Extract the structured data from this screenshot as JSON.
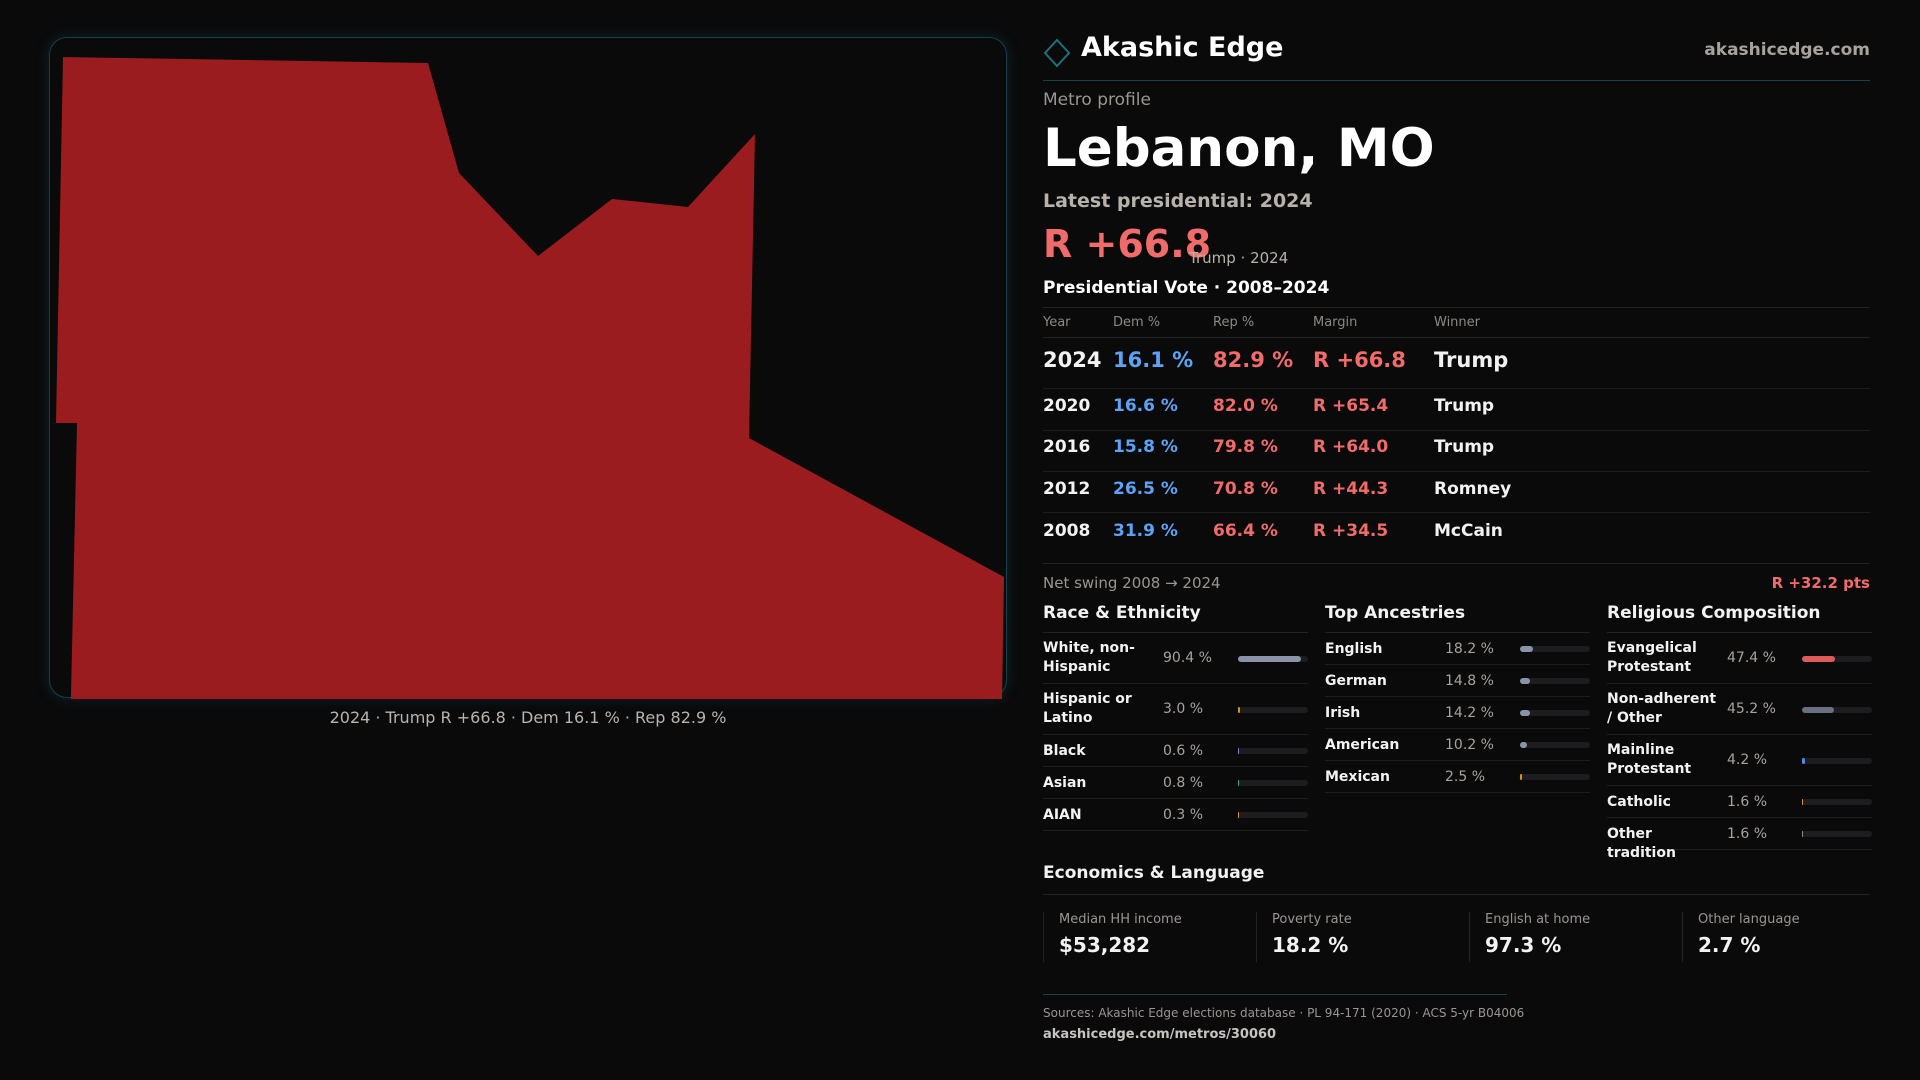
{
  "brand": {
    "name": "Akashic Edge",
    "site": "akashicedge.com",
    "accent": "#1f6f7a"
  },
  "profile": {
    "kicker": "Metro profile",
    "title": "Lebanon, MO",
    "latest": "Latest presidential: 2024",
    "margin": "R +66.8",
    "margin_sub": "Trump · 2024",
    "margin_color": "#f26b6b"
  },
  "map": {
    "fill": "#9a1c1f",
    "caption": "2024 · Trump R +66.8 · Dem 16.1 % · Rep 82.9 %"
  },
  "vote": {
    "title": "Presidential Vote · 2008–2024",
    "headers": [
      "Year",
      "Dem %",
      "Rep %",
      "Margin",
      "Winner"
    ],
    "rows": [
      {
        "year": "2024",
        "dem": "16.1 %",
        "rep": "82.9 %",
        "margin": "R +66.8",
        "winner": "Trump"
      },
      {
        "year": "2020",
        "dem": "16.6 %",
        "rep": "82.0 %",
        "margin": "R +65.4",
        "winner": "Trump"
      },
      {
        "year": "2016",
        "dem": "15.8 %",
        "rep": "79.8 %",
        "margin": "R +64.0",
        "winner": "Trump"
      },
      {
        "year": "2012",
        "dem": "26.5 %",
        "rep": "70.8 %",
        "margin": "R +44.3",
        "winner": "Romney"
      },
      {
        "year": "2008",
        "dem": "31.9 %",
        "rep": "66.4 %",
        "margin": "R +34.5",
        "winner": "McCain"
      }
    ],
    "swing_label": "Net swing 2008 → 2024",
    "swing_value": "R +32.2 pts"
  },
  "race": {
    "title": "Race & Ethnicity",
    "items": [
      {
        "label": "White, non-Hispanic",
        "value": "90.4 %",
        "pct": 90.4,
        "color": "#8a94a8"
      },
      {
        "label": "Hispanic or Latino",
        "value": "3.0 %",
        "pct": 3.0,
        "color": "#d9901a"
      },
      {
        "label": "Black",
        "value": "0.6 %",
        "pct": 0.6,
        "color": "#8a7ad0"
      },
      {
        "label": "Asian",
        "value": "0.8 %",
        "pct": 0.8,
        "color": "#2aa88a"
      },
      {
        "label": "AIAN",
        "value": "0.3 %",
        "pct": 0.3,
        "color": "#d9901a"
      }
    ]
  },
  "ancestry": {
    "title": "Top Ancestries",
    "items": [
      {
        "label": "English",
        "value": "18.2 %",
        "pct": 18.2,
        "color": "#8a94a8"
      },
      {
        "label": "German",
        "value": "14.8 %",
        "pct": 14.8,
        "color": "#8a94a8"
      },
      {
        "label": "Irish",
        "value": "14.2 %",
        "pct": 14.2,
        "color": "#8a94a8"
      },
      {
        "label": "American",
        "value": "10.2 %",
        "pct": 10.2,
        "color": "#8a94a8"
      },
      {
        "label": "Mexican",
        "value": "2.5 %",
        "pct": 2.5,
        "color": "#d9901a"
      }
    ]
  },
  "religion": {
    "title": "Religious Composition",
    "items": [
      {
        "label": "Evangelical Protestant",
        "value": "47.4 %",
        "pct": 47.4,
        "color": "#e05a5a"
      },
      {
        "label": "Non-adherent / Other",
        "value": "45.2 %",
        "pct": 45.2,
        "color": "#6a7080"
      },
      {
        "label": "Mainline Protestant",
        "value": "4.2 %",
        "pct": 4.2,
        "color": "#4a8ae0"
      },
      {
        "label": "Catholic",
        "value": "1.6 %",
        "pct": 1.6,
        "color": "#d9901a"
      },
      {
        "label": "Other tradition",
        "value": "1.6 %",
        "pct": 1.6,
        "color": "#8a8a8a"
      }
    ]
  },
  "economics": {
    "title": "Economics & Language",
    "cards": [
      {
        "label": "Median HH income",
        "value": "$53,282"
      },
      {
        "label": "Poverty rate",
        "value": "18.2 %"
      },
      {
        "label": "English at home",
        "value": "97.3 %"
      },
      {
        "label": "Other language",
        "value": "2.7 %"
      }
    ]
  },
  "footer": {
    "sources": "Sources: Akashic Edge elections database · PL 94-171 (2020) · ACS 5-yr B04006",
    "url": "akashicedge.com/metros/30060"
  }
}
